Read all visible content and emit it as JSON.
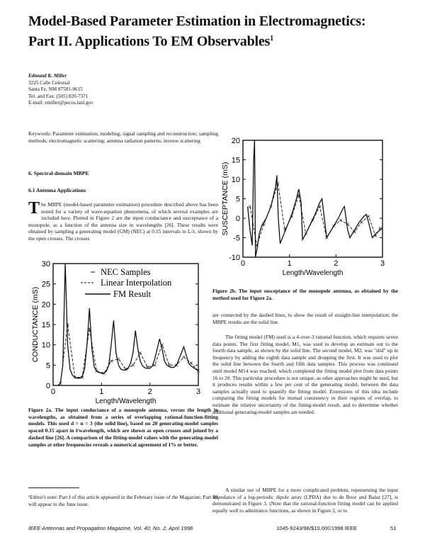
{
  "header": {
    "title_line1": "Model-Based Parameter Estimation in Electromagnetics:",
    "title_line2": "Part II. Applications To EM Observables",
    "title_footnote_mark": "1"
  },
  "author": {
    "name": "Edmund K. Miller",
    "address1": "3225 Calle Celestial",
    "address2": "Santa Fe, NM 87501-9615",
    "phone": "Tel. and Fax: (505) 820-7371",
    "email": "E-mail: emiller@pecos.lanl.gov"
  },
  "keywords": "Keywords: Parameter estimation; modeling; signal sampling and reconstruction; sampling methods; electromagnetic scattering; antenna radiation patterns; inverse scattering",
  "section": {
    "heading": "6. Spectral-domain MBPE",
    "subheading": "6.1 Antenna Applications",
    "dropcap": "T",
    "para1": "he MBPE (model-based parameter estimation) procedure described above has been tested for a variety of wave-equation phenomena, of which several examples are included here. Plotted in Figure 2 are the input conductance and susceptance of a monopole, as a function of the antenna size in wavelengths [26]. These results were obtained by sampling a generating model (GM) (NEC) at 0.15 intervals in L/λ, shown by the open crosses. The crosses"
  },
  "figure2a": {
    "caption": "Figure 2a. The input conductance of a monopole antenna, versus the length in wavelengths, as obtained from a series of overlapping rational-function-fitting models. This used d = n = 3 (the solid line), based on 20 generating-model samples spaced 0.15 apart in l/wavelength, which are shown as open crosses and joined by a dashed line [26]. A comparison of the fitting-model values with the generating-model samples at other frequencies reveals a numerical agreement of 1% or better."
  },
  "figure2b": {
    "caption": "Figure 2b. The input susceptance of the monopole antenna, as obtained by the method used for Figure 2a."
  },
  "right_column": {
    "para1": "are connected by the dashed lines, to show the result of straight-line interpolation; the MBPE results are the solid line.",
    "para2": "The fitting model (FM) used is a 4-over-3 rational function, which requires seven data points. The first fitting model, M1, was used to develop an estimate out to the fourth data sample, as shown by the solid line. The second model, M2, was \"slid\" up in frequency by adding the eighth data sample and dropping the first. It was used to plot the solid line between the fourth and fifth data samples. This process was continued until model M14 was reached, which completed the fitting model plot from data points 16 to 20. This particular procedure is not unique, as other approaches might be used, but it produces results within a few per cent of the generating model, between the data samples actually used to quantify the fitting model. Extensions of this idea include comparing the fitting models for mutual consistency in their regions of overlap, to estimate the relative uncertainty of the fitting-model result, and to determine whether additional generating-model samples are needed.",
    "para3": "A similar use of MBPE for a more complicated problem, representing the input impedance of a log-periodic dipole array (LPDA) due to de Boor and Balaz [27], is demonstrated in Figure 3. (Note that the rational-function fitting model can be applied equally well to admittance functions, as shown in Figure 2, or to"
  },
  "footnote": {
    "text": "¹Editor's note: Part I of this article appeared in the February issue of the Magazine; Part III will appear in the June issue."
  },
  "footer": {
    "journal": "IEEE Antennas and Propagation Magazine, Vol. 40, No. 2, April 1998",
    "copyright": "1045-9243/98/$10.00©1998 IEEE",
    "page": "51"
  },
  "chart_data": [
    {
      "type": "line",
      "xlabel": "Length/Wavelength",
      "ylabel": "CONDUCTANCE (mS)",
      "xlim": [
        0,
        3
      ],
      "ylim": [
        0,
        30
      ],
      "xticks": [
        "0",
        "1",
        "2",
        "3"
      ],
      "yticks": [
        "0",
        "5",
        "10",
        "15",
        "20",
        "25",
        "30"
      ],
      "grid": false,
      "legend_position": "top",
      "series": [
        {
          "name": "NEC Samples",
          "style": "crosses",
          "x": [
            0.15,
            0.3,
            0.45,
            0.6,
            0.75,
            0.9,
            1.05,
            1.2,
            1.35,
            1.5,
            1.65,
            1.8,
            1.95,
            2.1,
            2.25,
            2.4,
            2.55,
            2.7,
            2.85,
            3.0
          ],
          "y": [
            0.5,
            15,
            2,
            2,
            14,
            3.5,
            3,
            6,
            6.5,
            4,
            5,
            8,
            4.5,
            5,
            10,
            5,
            5,
            7,
            5.5,
            3.6
          ]
        },
        {
          "name": "Linear Interpolation",
          "style": "dashed",
          "x": [
            0.15,
            0.3,
            0.45,
            0.6,
            0.75,
            0.9,
            1.05,
            1.2,
            1.35,
            1.5,
            1.65,
            1.8,
            1.95,
            2.1,
            2.25,
            2.4,
            2.55,
            2.7,
            2.85,
            3.0
          ],
          "y": [
            0.5,
            15,
            2,
            2,
            14,
            3.5,
            3,
            6,
            6.5,
            4,
            5,
            8,
            4.5,
            5,
            10,
            5,
            5,
            7,
            5.5,
            3.6
          ]
        },
        {
          "name": "FM Result",
          "style": "solid",
          "x": [
            0.1,
            0.15,
            0.2,
            0.25,
            0.3,
            0.35,
            0.4,
            0.45,
            0.5,
            0.55,
            0.6,
            0.65,
            0.7,
            0.75,
            0.8,
            0.85,
            0.9,
            0.95,
            1.0,
            1.05,
            1.1,
            1.15,
            1.2,
            1.25,
            1.3,
            1.35,
            1.4,
            1.45,
            1.5,
            1.55,
            1.6,
            1.65,
            1.7,
            1.75,
            1.8,
            1.85,
            1.9,
            1.95,
            2.0,
            2.05,
            2.1,
            2.15,
            2.2,
            2.25,
            2.3,
            2.35,
            2.4,
            2.45,
            2.5,
            2.55,
            2.6,
            2.65,
            2.7,
            2.75,
            2.8,
            2.85,
            2.9,
            2.95,
            3.0
          ],
          "y": [
            0,
            0.5,
            5,
            30,
            10,
            4,
            2.5,
            2,
            1.8,
            1.8,
            2.2,
            4,
            10,
            19,
            9,
            4.5,
            3.5,
            3.2,
            3,
            3,
            3.5,
            5,
            10,
            16,
            8,
            5,
            4,
            3.8,
            3.8,
            4.2,
            5.5,
            8,
            13.5,
            9,
            6,
            4.8,
            4.3,
            4.2,
            4.2,
            4.8,
            6.5,
            9,
            11.5,
            9,
            6,
            5,
            4.6,
            4.4,
            4.5,
            5,
            6.5,
            8,
            9.5,
            7.5,
            5.5,
            4.8,
            4.4,
            4,
            3.6
          ]
        }
      ]
    },
    {
      "type": "line",
      "xlabel": "Length/Wavelength",
      "ylabel": "SUSCEPTANCE (mS)",
      "xlim": [
        0,
        3
      ],
      "ylim": [
        -10,
        20
      ],
      "xticks": [
        "0",
        "1",
        "2",
        "3"
      ],
      "yticks": [
        "-10",
        "-5",
        "0",
        "5",
        "10",
        "15",
        "20"
      ],
      "grid": false,
      "series": [
        {
          "style": "crosses",
          "x": [
            0.15,
            0.3,
            0.45,
            0.6,
            0.75,
            0.9,
            1.05,
            1.2,
            1.35,
            1.5,
            1.65,
            1.8,
            1.95,
            2.1,
            2.25,
            2.4,
            2.55,
            2.7,
            2.85,
            2.95
          ],
          "y": [
            3,
            -7,
            -1.5,
            3,
            9,
            -3,
            0.5,
            6,
            -4,
            -0.5,
            3,
            -5,
            -2,
            -0.5,
            -1.5,
            -3.5,
            -1,
            0.5,
            -4.5,
            -2.5
          ]
        },
        {
          "style": "dashed",
          "x": [
            0.15,
            0.3,
            0.45,
            0.6,
            0.75,
            0.9,
            1.05,
            1.2,
            1.35,
            1.5,
            1.65,
            1.8,
            1.95,
            2.1,
            2.25,
            2.4,
            2.55,
            2.7,
            2.85,
            2.95
          ],
          "y": [
            3,
            -7,
            -1.5,
            3,
            9,
            -3,
            0.5,
            6,
            -4,
            -0.5,
            3,
            -5,
            -2,
            -0.5,
            -1.5,
            -3.5,
            -1,
            0.5,
            -4.5,
            -2.5
          ]
        },
        {
          "style": "solid",
          "x": [
            0.1,
            0.15,
            0.2,
            0.23,
            0.25,
            0.27,
            0.3,
            0.35,
            0.4,
            0.5,
            0.6,
            0.7,
            0.73,
            0.76,
            0.8,
            0.85,
            0.95,
            1.05,
            1.15,
            1.2,
            1.25,
            1.28,
            1.35,
            1.45,
            1.55,
            1.65,
            1.7,
            1.75,
            1.8,
            1.85,
            1.95,
            2.05,
            2.15,
            2.18,
            2.25,
            2.3,
            2.4,
            2.5,
            2.6,
            2.65,
            2.7,
            2.78,
            2.85,
            2.95,
            3.0
          ],
          "y": [
            3,
            -3,
            -7,
            15,
            20,
            -10,
            -8,
            -4,
            -2,
            0,
            3,
            8,
            11,
            0,
            -6.5,
            -5,
            -2,
            1,
            5,
            7.5,
            4,
            -5.5,
            -4,
            -1.5,
            1,
            4,
            5,
            0,
            -5,
            -4,
            -2,
            0,
            2.5,
            3,
            -3,
            -5,
            -3,
            -1,
            0.5,
            1,
            -1,
            -5,
            -4,
            -3,
            -2.5
          ]
        }
      ]
    }
  ]
}
